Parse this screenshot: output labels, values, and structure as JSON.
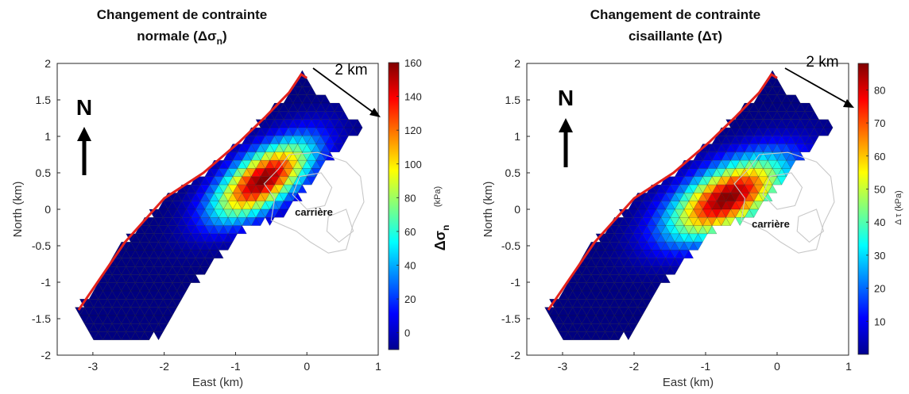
{
  "chart_data": [
    {
      "type": "heatmap",
      "title_lines": [
        "Changement de contrainte",
        "normale (Δσ",
        "n",
        ")"
      ],
      "xlabel": "East (km)",
      "ylabel": "North (km)",
      "xlim": [
        -3.5,
        1
      ],
      "ylim": [
        -2,
        2
      ],
      "xticks": [
        -3,
        -2,
        -1,
        0,
        1
      ],
      "yticks": [
        -2,
        -1.5,
        -1,
        -0.5,
        0,
        0.5,
        1,
        1.5,
        2
      ],
      "colorbar": {
        "min": -10,
        "max": 160,
        "ticks": [
          0,
          20,
          40,
          60,
          80,
          100,
          120,
          140,
          160
        ],
        "label_main": "Δσ",
        "label_sub": "n",
        "unit": "(kPa)"
      },
      "peak": {
        "x": -0.62,
        "y": 0.4,
        "value": 160
      },
      "north_arrow_label": "N",
      "scale_label": "2 km",
      "quarry_label": "carrière"
    },
    {
      "type": "heatmap",
      "title_lines": [
        "Changement de contrainte",
        "cisaillante (Δτ)"
      ],
      "xlabel": "East (km)",
      "ylabel": "North (km)",
      "xlim": [
        -3.5,
        1
      ],
      "ylim": [
        -2,
        2
      ],
      "xticks": [
        -3,
        -2,
        -1,
        0,
        1
      ],
      "yticks": [
        -2,
        -1.5,
        -1,
        -0.5,
        0,
        0.5,
        1,
        1.5,
        2
      ],
      "colorbar": {
        "min": 0,
        "max": 88,
        "ticks": [
          10,
          20,
          30,
          40,
          50,
          60,
          70,
          80
        ],
        "label_main": "Δ τ (kPa)"
      },
      "peak": {
        "x": -0.7,
        "y": 0.15,
        "value": 88
      },
      "north_arrow_label": "N",
      "scale_label": "2 km",
      "quarry_label": "carrière"
    }
  ],
  "colors": {
    "fault_trace": "#e3221c",
    "quarry_outline": "#c8c8c8",
    "mesh_edges": "#1a1a1a"
  }
}
